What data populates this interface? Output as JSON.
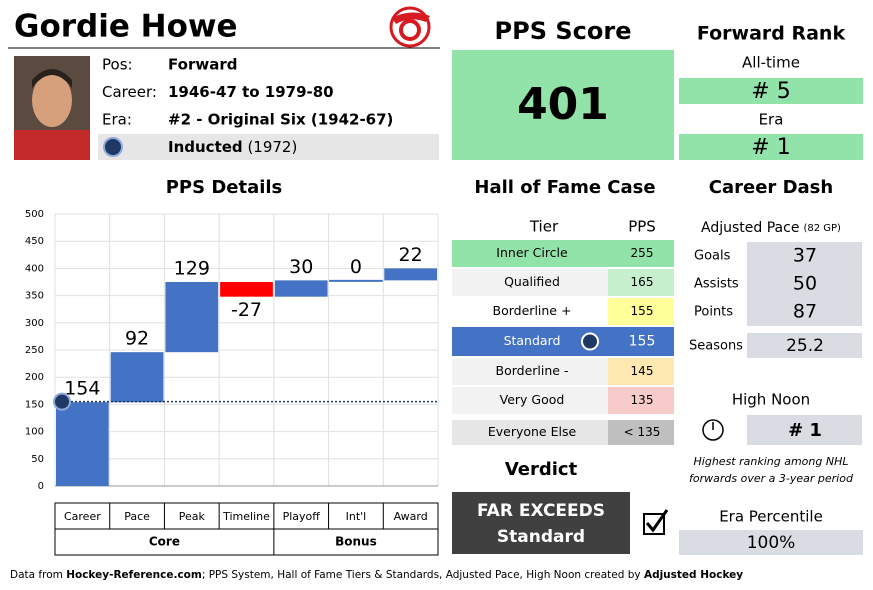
{
  "header": {
    "name": "Gordie Howe",
    "info": [
      {
        "label": "Pos:",
        "value": "Forward"
      },
      {
        "label": "Career:",
        "value": "1946-47 to 1979-80"
      },
      {
        "label": "Era:",
        "value": "#2 - Original Six (1942-67)"
      }
    ],
    "inducted": {
      "status": "Inducted",
      "year": "(1972)"
    }
  },
  "pps_score": {
    "title": "PPS Score",
    "value": 401
  },
  "forward_rank": {
    "title": "Forward Rank",
    "all_time_label": "All-time",
    "all_time": "# 5",
    "era_label": "Era",
    "era": "# 1"
  },
  "chart_data": {
    "type": "waterfall",
    "title": "PPS Details",
    "categories": [
      "Career",
      "Pace",
      "Peak",
      "Timeline",
      "Playoff",
      "Int'l",
      "Award"
    ],
    "values": [
      154,
      92,
      129,
      -27,
      30,
      0,
      22
    ],
    "color": "#4472c4",
    "negative_color": "#ff0000",
    "ylim": [
      0,
      500
    ],
    "yticks": [
      0,
      50,
      100,
      150,
      200,
      250,
      300,
      350,
      400,
      450,
      500
    ],
    "grid": true,
    "standard_line": 155,
    "groups": [
      {
        "name": "Core",
        "span": 4
      },
      {
        "name": "Bonus",
        "span": 3
      }
    ]
  },
  "hof_case": {
    "title": "Hall of Fame Case",
    "columns": [
      "Tier",
      "PPS"
    ],
    "rows": [
      {
        "tier": "Inner Circle",
        "pps": "255",
        "color": "#92e3a9",
        "tier_color": "#92e3a9"
      },
      {
        "tier": "Qualified",
        "pps": "165",
        "color": "#c6efce",
        "tier_color": "#f2f2f2"
      },
      {
        "tier": "Borderline +",
        "pps": "155",
        "color": "#ffff99",
        "tier_color": "#ffffff"
      },
      {
        "tier": "Standard",
        "pps": "155",
        "color": "#4472c4",
        "tier_color": "#4472c4"
      },
      {
        "tier": "Borderline -",
        "pps": "145",
        "color": "#fde9b0",
        "tier_color": "#f2f2f2"
      },
      {
        "tier": "Very Good",
        "pps": "135",
        "color": "#f8cbcb",
        "tier_color": "#f2f2f2"
      },
      {
        "tier": "Everyone Else",
        "pps": "< 135",
        "color": "#bfbfbf",
        "tier_color": "#e7e6e6"
      }
    ]
  },
  "verdict": {
    "title": "Verdict",
    "line1": "FAR EXCEEDS",
    "line2": "Standard"
  },
  "career_dash": {
    "title": "Career Dash",
    "subtitle": "Adjusted Pace",
    "note": "(82 GP)",
    "rows": [
      {
        "label": "Goals",
        "value": "37"
      },
      {
        "label": "Assists",
        "value": "50"
      },
      {
        "label": "Points",
        "value": "87"
      }
    ],
    "seasons_label": "Seasons",
    "seasons": "25.2"
  },
  "high_noon": {
    "title": "High Noon",
    "value": "# 1",
    "note": [
      "Highest ranking among NHL",
      "forwards over a 3-year period"
    ]
  },
  "era_percentile": {
    "title": "Era Percentile",
    "value": "100%"
  },
  "footer": [
    "Data from ",
    "Hockey-Reference.com",
    "; PPS System, Hall of Fame Tiers & Standards, Adjusted Pace, High Noon created by ",
    "Adjusted Hockey"
  ]
}
